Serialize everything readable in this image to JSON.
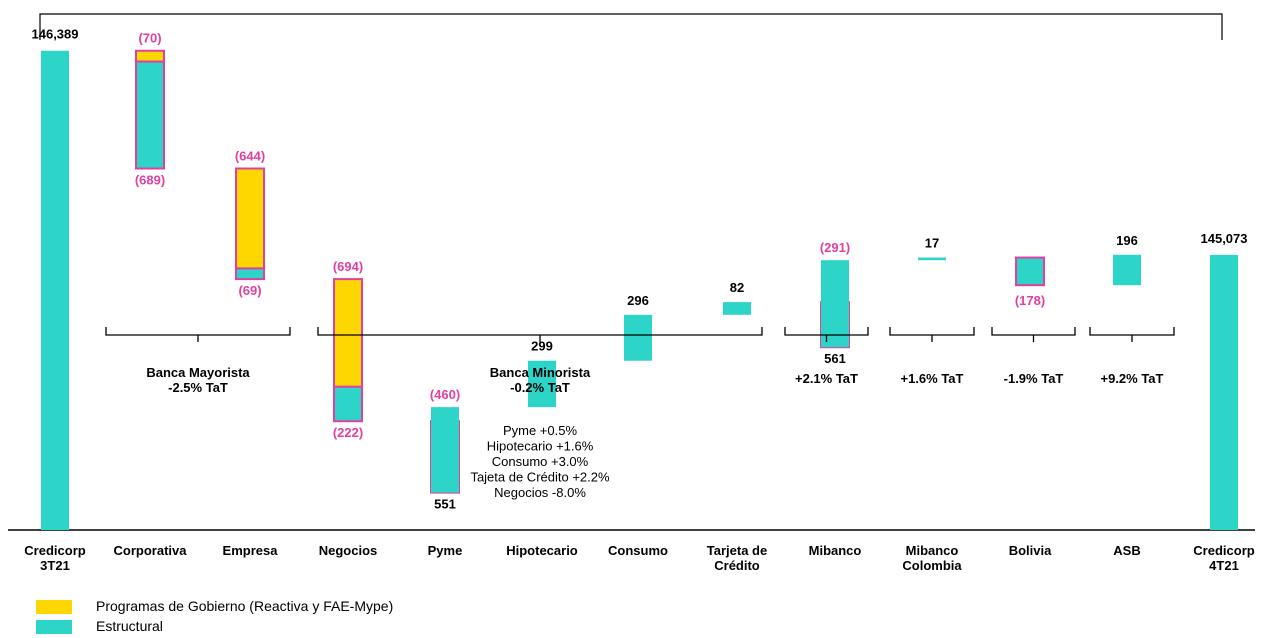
{
  "colors": {
    "estructural": "#2DD4C8",
    "gobierno": "#FFD700",
    "border": "#E040A0"
  },
  "chart_data": {
    "type": "bar",
    "subtype": "waterfall",
    "ylim": [
      143300,
      146600
    ],
    "categories": [
      {
        "id": "c3t21",
        "lines": [
          "Credicorp",
          "3T21"
        ]
      },
      {
        "id": "corporativa",
        "lines": [
          "Corporativa"
        ]
      },
      {
        "id": "empresa",
        "lines": [
          "Empresa"
        ]
      },
      {
        "id": "negocios",
        "lines": [
          "Negocios"
        ]
      },
      {
        "id": "pyme",
        "lines": [
          "Pyme"
        ]
      },
      {
        "id": "hipotecario",
        "lines": [
          "Hipotecario"
        ]
      },
      {
        "id": "consumo",
        "lines": [
          "Consumo"
        ]
      },
      {
        "id": "tarjeta",
        "lines": [
          "Tarjeta de",
          "Crédito"
        ]
      },
      {
        "id": "mibanco",
        "lines": [
          "Mibanco"
        ]
      },
      {
        "id": "mibanco-colombia",
        "lines": [
          "Mibanco",
          "Colombia"
        ]
      },
      {
        "id": "bolivia",
        "lines": [
          "Bolivia"
        ]
      },
      {
        "id": "asb",
        "lines": [
          "ASB"
        ]
      },
      {
        "id": "c4t21",
        "lines": [
          "Credicorp",
          "4T21"
        ]
      }
    ],
    "totals": [
      {
        "category": "c3t21",
        "value": 146389,
        "label": "146,389"
      },
      {
        "category": "c4t21",
        "value": 145073,
        "label": "145,073"
      }
    ],
    "series": [
      {
        "name": "Programas de Gobierno (Reactiva y FAE-Mype)",
        "key": "gobierno",
        "values": {
          "corporativa": -70,
          "empresa": -644,
          "negocios": -694,
          "pyme": -460,
          "mibanco": -291
        },
        "labels": {
          "corporativa": "(70)",
          "empresa": "(644)",
          "negocios": "(694)",
          "pyme": "(460)",
          "mibanco": "(291)"
        }
      },
      {
        "name": "Estructural",
        "key": "estructural",
        "values": {
          "corporativa": -689,
          "empresa": -69,
          "negocios": -222,
          "pyme": 551,
          "hipotecario": 299,
          "consumo": 296,
          "tarjeta": 82,
          "mibanco": 561,
          "mibanco-colombia": 17,
          "bolivia": -178,
          "asb": 196
        },
        "labels": {
          "corporativa": "(689)",
          "empresa": "(69)",
          "negocios": "(222)",
          "pyme": "551",
          "hipotecario": "299",
          "consumo": "296",
          "tarjeta": "82",
          "mibanco": "561",
          "mibanco-colombia": "17",
          "bolivia": "(178)",
          "asb": "196"
        }
      }
    ],
    "groups": [
      {
        "id": "banca-mayorista",
        "from": "corporativa",
        "to": "empresa",
        "lines": [
          "Banca Mayorista",
          "-2.5% TaT"
        ]
      },
      {
        "id": "banca-minorista",
        "from": "negocios",
        "to": "tarjeta",
        "lines": [
          "Banca Minorista",
          "-0.2% TaT"
        ]
      },
      {
        "id": "mibanco",
        "from": "mibanco",
        "to": "mibanco",
        "lines": [
          "+2.1% TaT"
        ]
      },
      {
        "id": "mibanco-colombia",
        "from": "mibanco-colombia",
        "to": "mibanco-colombia",
        "lines": [
          "+1.6% TaT"
        ]
      },
      {
        "id": "bolivia",
        "from": "bolivia",
        "to": "bolivia",
        "lines": [
          "-1.9% TaT"
        ]
      },
      {
        "id": "asb",
        "from": "asb",
        "to": "asb",
        "lines": [
          "+9.2% TaT"
        ]
      }
    ],
    "minorista_detail": [
      "Pyme +0.5%",
      "Hipotecario +1.6%",
      "Consumo +3.0%",
      "Tajeta de Crédito +2.2%",
      "Negocios -8.0%"
    ],
    "legend": [
      {
        "key": "gobierno",
        "label": "Programas de Gobierno (Reactiva y FAE-Mype)"
      },
      {
        "key": "estructural",
        "label": "Estructural"
      }
    ],
    "grid": false,
    "legend_position": "bottom-left"
  }
}
